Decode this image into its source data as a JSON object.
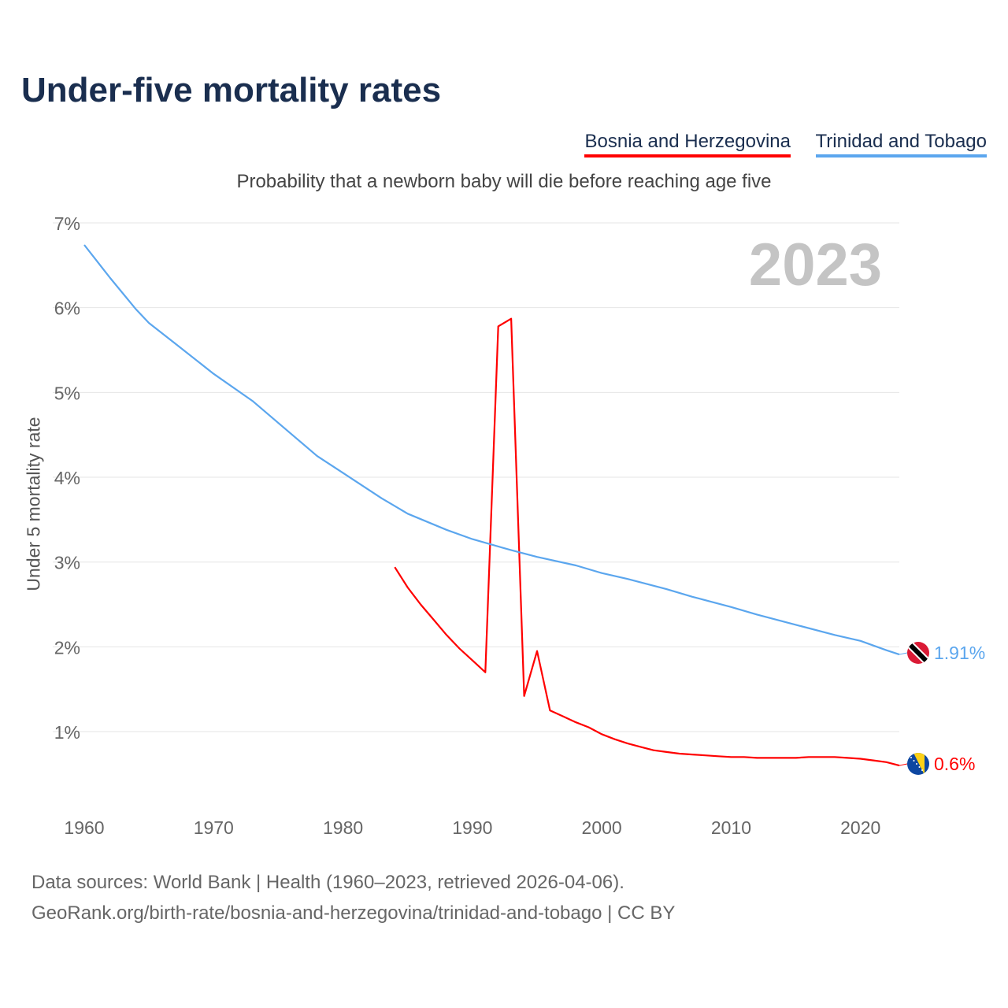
{
  "chart_data": {
    "type": "line",
    "title": "Under-five mortality rates",
    "subtitle": "Probability that a newborn baby will die before reaching age five",
    "ylabel": "Under 5 mortality rate",
    "xlabel": "",
    "year_watermark": "2023",
    "xlim": [
      1960,
      2023
    ],
    "ylim": [
      0,
      7
    ],
    "yticks": [
      1,
      2,
      3,
      4,
      5,
      6,
      7
    ],
    "ytick_labels": [
      "1%",
      "2%",
      "3%",
      "4%",
      "5%",
      "6%",
      "7%"
    ],
    "xticks": [
      1960,
      1970,
      1980,
      1990,
      2000,
      2010,
      2020
    ],
    "xtick_labels": [
      "1960",
      "1970",
      "1980",
      "1990",
      "2000",
      "2010",
      "2020"
    ],
    "grid": true,
    "legend_position": "top-right",
    "series": [
      {
        "name": "Bosnia and Herzegovina",
        "color": "#ff0000",
        "flag": "bosnia-flag",
        "end_label": "0.6%",
        "x": [
          1984,
          1985,
          1986,
          1987,
          1988,
          1989,
          1990,
          1991,
          1992,
          1993,
          1994,
          1995,
          1996,
          1997,
          1998,
          1999,
          2000,
          2001,
          2002,
          2003,
          2004,
          2005,
          2006,
          2007,
          2008,
          2009,
          2010,
          2011,
          2012,
          2013,
          2014,
          2015,
          2016,
          2017,
          2018,
          2019,
          2020,
          2021,
          2022,
          2023
        ],
        "values": [
          2.94,
          2.7,
          2.5,
          2.32,
          2.14,
          1.98,
          1.84,
          1.7,
          5.78,
          5.87,
          1.42,
          1.95,
          1.25,
          1.18,
          1.11,
          1.05,
          0.97,
          0.91,
          0.86,
          0.82,
          0.78,
          0.76,
          0.74,
          0.73,
          0.72,
          0.71,
          0.7,
          0.7,
          0.69,
          0.69,
          0.69,
          0.69,
          0.7,
          0.7,
          0.7,
          0.69,
          0.68,
          0.66,
          0.64,
          0.6
        ]
      },
      {
        "name": "Trinidad and Tobago",
        "color": "#5ba6ee",
        "flag": "trinidad-flag",
        "end_label": "1.91%",
        "x": [
          1960,
          1962,
          1964,
          1965,
          1967,
          1970,
          1973,
          1975,
          1978,
          1980,
          1983,
          1985,
          1988,
          1990,
          1993,
          1995,
          1998,
          2000,
          2002,
          2005,
          2007,
          2010,
          2012,
          2015,
          2018,
          2020,
          2022,
          2023
        ],
        "values": [
          6.74,
          6.35,
          5.98,
          5.82,
          5.58,
          5.22,
          4.9,
          4.64,
          4.25,
          4.05,
          3.75,
          3.57,
          3.38,
          3.27,
          3.14,
          3.06,
          2.96,
          2.87,
          2.8,
          2.68,
          2.59,
          2.47,
          2.38,
          2.26,
          2.14,
          2.07,
          1.96,
          1.91
        ]
      }
    ]
  },
  "source_line1": "Data sources: World Bank | Health (1960–2023, retrieved 2026-04-06).",
  "source_line2": "GeoRank.org/birth-rate/bosnia-and-herzegovina/trinidad-and-tobago | CC BY"
}
